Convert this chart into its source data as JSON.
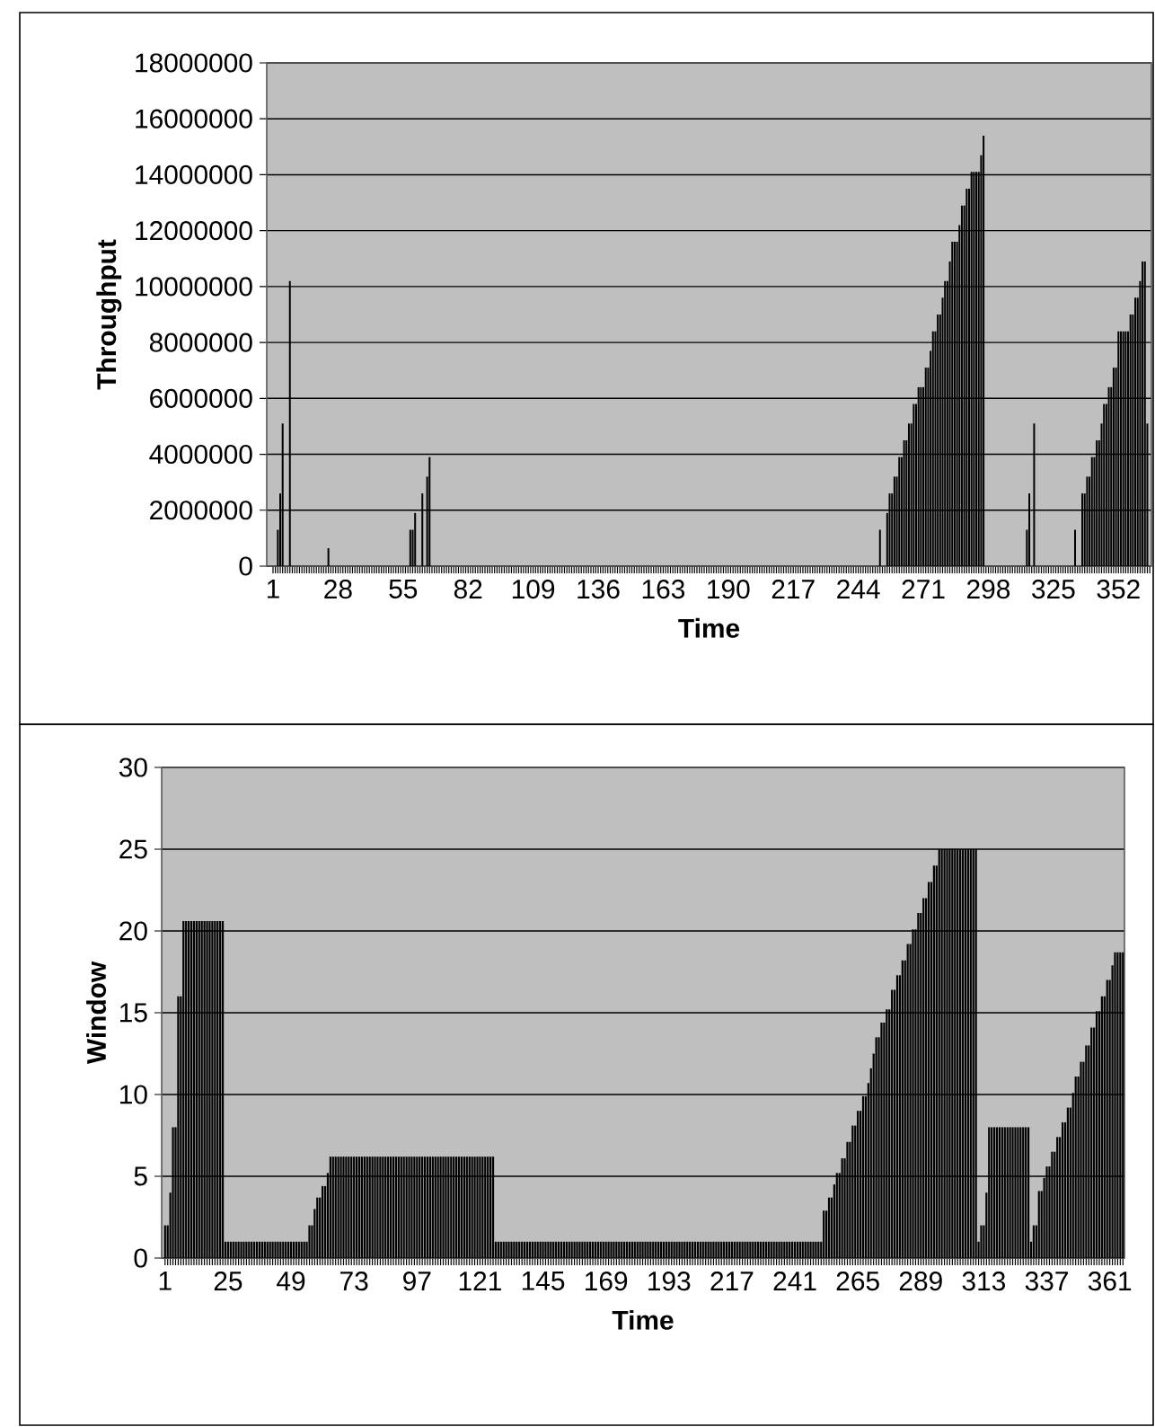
{
  "chart_data": [
    {
      "type": "bar",
      "xlabel": "Time",
      "ylabel": "Throughput",
      "color": "#000000",
      "grid": "y",
      "ylim": [
        0,
        18000000
      ],
      "yticks": [
        0,
        2000000,
        4000000,
        6000000,
        8000000,
        10000000,
        12000000,
        14000000,
        16000000,
        18000000
      ],
      "categories": [
        "1",
        null,
        null,
        null,
        null,
        null,
        null,
        null,
        null,
        null,
        null,
        null,
        null,
        null,
        null,
        null,
        null,
        null,
        null,
        null,
        null,
        null,
        null,
        null,
        null,
        null,
        null,
        "28",
        null,
        null,
        null,
        null,
        null,
        null,
        null,
        null,
        null,
        null,
        null,
        null,
        null,
        null,
        null,
        null,
        null,
        null,
        null,
        null,
        null,
        null,
        null,
        null,
        null,
        null,
        "55",
        null,
        null,
        null,
        null,
        null,
        null,
        null,
        null,
        null,
        null,
        null,
        null,
        null,
        null,
        null,
        null,
        null,
        null,
        null,
        null,
        null,
        null,
        null,
        null,
        null,
        null,
        "82",
        null,
        null,
        null,
        null,
        null,
        null,
        null,
        null,
        null,
        null,
        null,
        null,
        null,
        null,
        null,
        null,
        null,
        null,
        null,
        null,
        null,
        null,
        null,
        null,
        null,
        null,
        "109",
        null,
        null,
        null,
        null,
        null,
        null,
        null,
        null,
        null,
        null,
        null,
        null,
        null,
        null,
        null,
        null,
        null,
        null,
        null,
        null,
        null,
        null,
        null,
        null,
        null,
        null,
        "136",
        null,
        null,
        null,
        null,
        null,
        null,
        null,
        null,
        null,
        null,
        null,
        null,
        null,
        null,
        null,
        null,
        null,
        null,
        null,
        null,
        null,
        null,
        null,
        null,
        null,
        null,
        "163",
        null,
        null,
        null,
        null,
        null,
        null,
        null,
        null,
        null,
        null,
        null,
        null,
        null,
        null,
        null,
        null,
        null,
        null,
        null,
        null,
        null,
        null,
        null,
        null,
        null,
        null,
        "190",
        null,
        null,
        null,
        null,
        null,
        null,
        null,
        null,
        null,
        null,
        null,
        null,
        null,
        null,
        null,
        null,
        null,
        null,
        null,
        null,
        null,
        null,
        null,
        null,
        null,
        null,
        "217",
        null,
        null,
        null,
        null,
        null,
        null,
        null,
        null,
        null,
        null,
        null,
        null,
        null,
        null,
        null,
        null,
        null,
        null,
        null,
        null,
        null,
        null,
        null,
        null,
        null,
        null,
        "244",
        null,
        null,
        null,
        null,
        null,
        null,
        null,
        null,
        null,
        null,
        null,
        null,
        null,
        null,
        null,
        null,
        null,
        null,
        null,
        null,
        null,
        null,
        null,
        null,
        null,
        null,
        "271",
        null,
        null,
        null,
        null,
        null,
        null,
        null,
        null,
        null,
        null,
        null,
        null,
        null,
        null,
        null,
        null,
        null,
        null,
        null,
        null,
        null,
        null,
        null,
        null,
        null,
        null,
        "298",
        null,
        null,
        null,
        null,
        null,
        null,
        null,
        null,
        null,
        null,
        null,
        null,
        null,
        null,
        null,
        null,
        null,
        null,
        null,
        null,
        null,
        null,
        null,
        null,
        null,
        null,
        "325",
        null,
        null,
        null,
        null,
        null,
        null,
        null,
        null,
        null,
        null,
        null,
        null,
        null,
        null,
        null,
        null,
        null,
        null,
        null,
        null,
        null,
        null,
        null,
        null,
        null,
        null,
        "352",
        null,
        null,
        null,
        null,
        null,
        null,
        null,
        null,
        null,
        null,
        null,
        null,
        null
      ],
      "values": [
        0,
        0,
        1300000,
        2600000,
        5100000,
        0,
        0,
        10200000,
        0,
        0,
        0,
        0,
        0,
        0,
        0,
        0,
        0,
        0,
        0,
        0,
        0,
        0,
        0,
        640000,
        0,
        0,
        0,
        0,
        0,
        0,
        0,
        0,
        0,
        0,
        0,
        0,
        0,
        0,
        0,
        0,
        0,
        0,
        0,
        0,
        0,
        0,
        0,
        0,
        0,
        0,
        0,
        0,
        0,
        0,
        0,
        0,
        0,
        1300000,
        1300000,
        1900000,
        0,
        0,
        2600000,
        0,
        3200000,
        3900000,
        0,
        0,
        0,
        0,
        0,
        0,
        0,
        0,
        0,
        0,
        0,
        0,
        0,
        0,
        0,
        0,
        0,
        0,
        0,
        0,
        0,
        0,
        0,
        0,
        0,
        0,
        0,
        0,
        0,
        0,
        0,
        0,
        0,
        0,
        0,
        0,
        0,
        0,
        0,
        0,
        0,
        0,
        0,
        0,
        0,
        0,
        0,
        0,
        0,
        0,
        0,
        0,
        0,
        0,
        0,
        0,
        0,
        0,
        0,
        0,
        0,
        0,
        0,
        0,
        0,
        0,
        0,
        0,
        0,
        0,
        0,
        0,
        0,
        0,
        0,
        0,
        0,
        0,
        0,
        0,
        0,
        0,
        0,
        0,
        0,
        0,
        0,
        0,
        0,
        0,
        0,
        0,
        0,
        0,
        0,
        0,
        0,
        0,
        0,
        0,
        0,
        0,
        0,
        0,
        0,
        0,
        0,
        0,
        0,
        0,
        0,
        0,
        0,
        0,
        0,
        0,
        0,
        0,
        0,
        0,
        0,
        0,
        0,
        0,
        0,
        0,
        0,
        0,
        0,
        0,
        0,
        0,
        0,
        0,
        0,
        0,
        0,
        0,
        0,
        0,
        0,
        0,
        0,
        0,
        0,
        0,
        0,
        0,
        0,
        0,
        0,
        0,
        0,
        0,
        0,
        0,
        0,
        0,
        0,
        0,
        0,
        0,
        0,
        0,
        0,
        0,
        0,
        0,
        0,
        0,
        0,
        0,
        0,
        0,
        0,
        0,
        0,
        0,
        0,
        0,
        0,
        0,
        0,
        0,
        0,
        0,
        1300000,
        0,
        0,
        1900000,
        2600000,
        2600000,
        3200000,
        3200000,
        3900000,
        3900000,
        4500000,
        4500000,
        5100000,
        5100000,
        5800000,
        5800000,
        6400000,
        6400000,
        6400000,
        7100000,
        7100000,
        7700000,
        8400000,
        8400000,
        9000000,
        9000000,
        9600000,
        10200000,
        10200000,
        10900000,
        11600000,
        11600000,
        11600000,
        12200000,
        12900000,
        12900000,
        13500000,
        13500000,
        14100000,
        14100000,
        14100000,
        14100000,
        14700000,
        15400000,
        0,
        0,
        0,
        0,
        0,
        0,
        0,
        0,
        0,
        0,
        0,
        0,
        0,
        0,
        0,
        0,
        0,
        1300000,
        2600000,
        0,
        5100000,
        0,
        0,
        0,
        0,
        0,
        0,
        0,
        0,
        0,
        0,
        0,
        0,
        0,
        0,
        0,
        0,
        1300000,
        0,
        0,
        2600000,
        2600000,
        3200000,
        3200000,
        3900000,
        3900000,
        4500000,
        4500000,
        5100000,
        5800000,
        5800000,
        6400000,
        6400000,
        7100000,
        7100000,
        8400000,
        8400000,
        8400000,
        8400000,
        8400000,
        9000000,
        9000000,
        9600000,
        9600000,
        10200000,
        10900000,
        10900000,
        5100000,
        0
      ]
    },
    {
      "type": "bar",
      "xlabel": "Time",
      "ylabel": "Window",
      "color": "#000000",
      "grid": "y",
      "ylim": [
        0,
        30
      ],
      "yticks": [
        0,
        5,
        10,
        15,
        20,
        25,
        30
      ],
      "categories": [
        "1",
        null,
        null,
        null,
        null,
        null,
        null,
        null,
        null,
        null,
        null,
        null,
        null,
        null,
        null,
        null,
        null,
        null,
        null,
        null,
        null,
        null,
        null,
        null,
        "25",
        null,
        null,
        null,
        null,
        null,
        null,
        null,
        null,
        null,
        null,
        null,
        null,
        null,
        null,
        null,
        null,
        null,
        null,
        null,
        null,
        null,
        null,
        null,
        "49",
        null,
        null,
        null,
        null,
        null,
        null,
        null,
        null,
        null,
        null,
        null,
        null,
        null,
        null,
        null,
        null,
        null,
        null,
        null,
        null,
        null,
        null,
        null,
        "73",
        null,
        null,
        null,
        null,
        null,
        null,
        null,
        null,
        null,
        null,
        null,
        null,
        null,
        null,
        null,
        null,
        null,
        null,
        null,
        null,
        null,
        null,
        null,
        "97",
        null,
        null,
        null,
        null,
        null,
        null,
        null,
        null,
        null,
        null,
        null,
        null,
        null,
        null,
        null,
        null,
        null,
        null,
        null,
        null,
        null,
        null,
        null,
        "121",
        null,
        null,
        null,
        null,
        null,
        null,
        null,
        null,
        null,
        null,
        null,
        null,
        null,
        null,
        null,
        null,
        null,
        null,
        null,
        null,
        null,
        null,
        null,
        "145",
        null,
        null,
        null,
        null,
        null,
        null,
        null,
        null,
        null,
        null,
        null,
        null,
        null,
        null,
        null,
        null,
        null,
        null,
        null,
        null,
        null,
        null,
        null,
        "169",
        null,
        null,
        null,
        null,
        null,
        null,
        null,
        null,
        null,
        null,
        null,
        null,
        null,
        null,
        null,
        null,
        null,
        null,
        null,
        null,
        null,
        null,
        null,
        "193",
        null,
        null,
        null,
        null,
        null,
        null,
        null,
        null,
        null,
        null,
        null,
        null,
        null,
        null,
        null,
        null,
        null,
        null,
        null,
        null,
        null,
        null,
        null,
        "217",
        null,
        null,
        null,
        null,
        null,
        null,
        null,
        null,
        null,
        null,
        null,
        null,
        null,
        null,
        null,
        null,
        null,
        null,
        null,
        null,
        null,
        null,
        null,
        "241",
        null,
        null,
        null,
        null,
        null,
        null,
        null,
        null,
        null,
        null,
        null,
        null,
        null,
        null,
        null,
        null,
        null,
        null,
        null,
        null,
        null,
        null,
        null,
        "265",
        null,
        null,
        null,
        null,
        null,
        null,
        null,
        null,
        null,
        null,
        null,
        null,
        null,
        null,
        null,
        null,
        null,
        null,
        null,
        null,
        null,
        null,
        null,
        "289",
        null,
        null,
        null,
        null,
        null,
        null,
        null,
        null,
        null,
        null,
        null,
        null,
        null,
        null,
        null,
        null,
        null,
        null,
        null,
        null,
        null,
        null,
        null,
        "313",
        null,
        null,
        null,
        null,
        null,
        null,
        null,
        null,
        null,
        null,
        null,
        null,
        null,
        null,
        null,
        null,
        null,
        null,
        null,
        null,
        null,
        null,
        null,
        "337",
        null,
        null,
        null,
        null,
        null,
        null,
        null,
        null,
        null,
        null,
        null,
        null,
        null,
        null,
        null,
        null,
        null,
        null,
        null,
        null,
        null,
        null,
        null,
        "361",
        null,
        null,
        null,
        null,
        null
      ],
      "values": [
        2,
        2,
        4,
        8,
        8,
        16,
        16,
        20.6,
        20.6,
        20.6,
        20.6,
        20.6,
        20.6,
        20.6,
        20.6,
        20.6,
        20.6,
        20.6,
        20.6,
        20.6,
        20.6,
        20.6,
        20.6,
        1,
        1,
        1,
        1,
        1,
        1,
        1,
        1,
        1,
        1,
        1,
        1,
        1,
        1,
        1,
        1,
        1,
        1,
        1,
        1,
        1,
        1,
        1,
        1,
        1,
        1,
        1,
        1,
        1,
        1,
        1,
        1,
        2,
        2,
        3,
        3.7,
        3.7,
        4.4,
        4.4,
        5.2,
        6.2,
        6.2,
        6.2,
        6.2,
        6.2,
        6.2,
        6.2,
        6.2,
        6.2,
        6.2,
        6.2,
        6.2,
        6.2,
        6.2,
        6.2,
        6.2,
        6.2,
        6.2,
        6.2,
        6.2,
        6.2,
        6.2,
        6.2,
        6.2,
        6.2,
        6.2,
        6.2,
        6.2,
        6.2,
        6.2,
        6.2,
        6.2,
        6.2,
        6.2,
        6.2,
        6.2,
        6.2,
        6.2,
        6.2,
        6.2,
        6.2,
        6.2,
        6.2,
        6.2,
        6.2,
        6.2,
        6.2,
        6.2,
        6.2,
        6.2,
        6.2,
        6.2,
        6.2,
        6.2,
        6.2,
        6.2,
        6.2,
        6.2,
        6.2,
        6.2,
        6.2,
        6.2,
        6.2,
        1,
        1,
        1,
        1,
        1,
        1,
        1,
        1,
        1,
        1,
        1,
        1,
        1,
        1,
        1,
        1,
        1,
        1,
        1,
        1,
        1,
        1,
        1,
        1,
        1,
        1,
        1,
        1,
        1,
        1,
        1,
        1,
        1,
        1,
        1,
        1,
        1,
        1,
        1,
        1,
        1,
        1,
        1,
        1,
        1,
        1,
        1,
        1,
        1,
        1,
        1,
        1,
        1,
        1,
        1,
        1,
        1,
        1,
        1,
        1,
        1,
        1,
        1,
        1,
        1,
        1,
        1,
        1,
        1,
        1,
        1,
        1,
        1,
        1,
        1,
        1,
        1,
        1,
        1,
        1,
        1,
        1,
        1,
        1,
        1,
        1,
        1,
        1,
        1,
        1,
        1,
        1,
        1,
        1,
        1,
        1,
        1,
        1,
        1,
        1,
        1,
        1,
        1,
        1,
        1,
        1,
        1,
        1,
        1,
        1,
        1,
        1,
        1,
        1,
        1,
        1,
        1,
        1,
        1,
        1,
        1,
        1,
        1,
        1,
        1,
        2.9,
        2.9,
        3.7,
        3.7,
        4.5,
        5.2,
        5.2,
        6.1,
        6.1,
        7.1,
        7.1,
        8.1,
        8.1,
        9,
        9,
        9.9,
        9.9,
        10.7,
        11.6,
        12.5,
        13.5,
        13.5,
        14.4,
        14.4,
        15.2,
        15.2,
        16.4,
        16.4,
        17.3,
        17.3,
        18.2,
        18.2,
        19.2,
        19.2,
        20.1,
        20.1,
        21.1,
        21.1,
        22,
        22,
        23,
        23,
        24,
        24,
        25,
        25,
        25,
        25,
        25,
        25,
        25,
        25,
        25,
        25,
        25,
        25,
        25,
        25,
        25,
        1,
        2,
        2,
        4,
        8,
        8,
        8,
        8,
        8,
        8,
        8,
        8,
        8,
        8,
        8,
        8,
        8,
        8,
        8,
        8,
        1,
        2,
        2,
        4.1,
        4.1,
        4.9,
        5.6,
        5.6,
        6.5,
        6.5,
        7.4,
        7.4,
        8.3,
        8.3,
        9.2,
        9.2,
        10.1,
        11.1,
        11.1,
        12,
        12,
        13,
        13,
        14.1,
        14.1,
        15.1,
        15.1,
        16,
        16,
        17,
        17,
        17.9,
        18.7,
        18.7,
        18.7,
        18.7
      ]
    }
  ]
}
